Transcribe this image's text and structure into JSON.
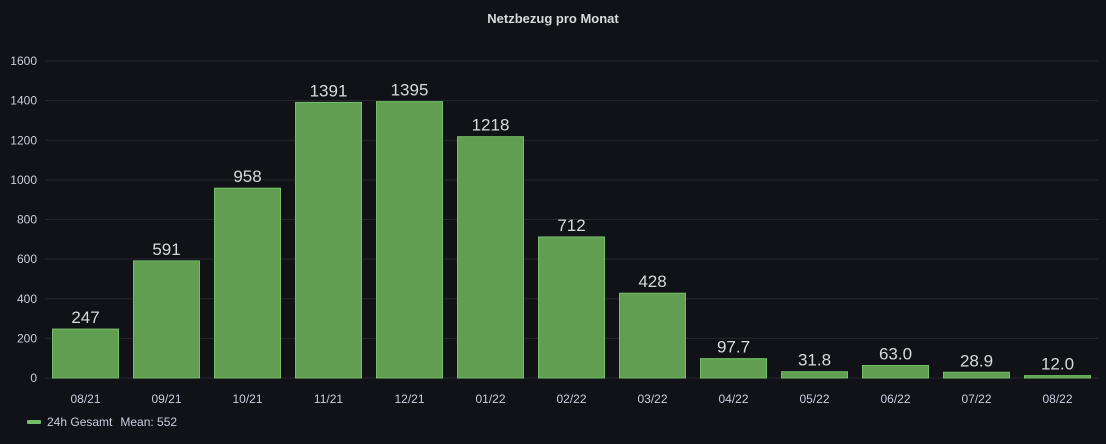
{
  "chart_data": {
    "type": "bar",
    "title": "Netzbezug pro Monat",
    "categories": [
      "08/21",
      "09/21",
      "10/21",
      "11/21",
      "12/21",
      "01/22",
      "02/22",
      "03/22",
      "04/22",
      "05/22",
      "06/22",
      "07/22",
      "08/22"
    ],
    "series": [
      {
        "name": "24h Gesamt",
        "values": [
          247,
          591,
          958,
          1391,
          1395,
          1218,
          712,
          428,
          97.7,
          31.8,
          63.0,
          28.9,
          12.0
        ],
        "labels": [
          "247",
          "591",
          "958",
          "1391",
          "1395",
          "1218",
          "712",
          "428",
          "97.7",
          "31.8",
          "63.0",
          "28.9",
          "12.0"
        ]
      }
    ],
    "ylim": [
      0,
      1600
    ],
    "yticks": [
      0,
      200,
      400,
      600,
      800,
      1000,
      1200,
      1400,
      1600
    ],
    "xlabel": "",
    "ylabel": "",
    "grid": true,
    "legend": {
      "placement": "bottom-left",
      "name": "24h Gesamt",
      "stat": "Mean: 552"
    },
    "colors": {
      "bar_fill": "#629e51",
      "bar_stroke": "#73bf69",
      "grid": "#25272c",
      "text": "#ccccdc"
    }
  }
}
